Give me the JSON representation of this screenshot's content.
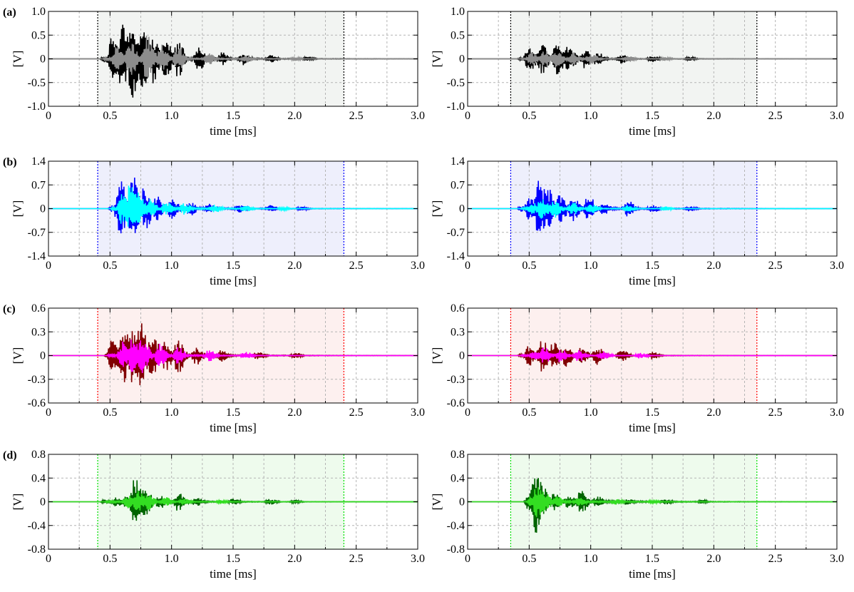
{
  "chart_data": [
    {
      "id": "a-left",
      "type": "line",
      "panel_label": "(a)",
      "xlabel": "time [ms]",
      "ylabel": "[V]",
      "xlim": [
        0,
        3.0
      ],
      "ylim": [
        -1.0,
        1.0
      ],
      "xticks": [
        "0",
        "0.5",
        "1.0",
        "1.5",
        "2.0",
        "2.5",
        "3.0"
      ],
      "yticks": [
        "1.0",
        "0.5",
        "0",
        "-0.5",
        "-1.0"
      ],
      "window": [
        0.4,
        2.4
      ],
      "window_color": "#000000",
      "shade_color": "#f2f4f2",
      "grid": true,
      "series": [
        {
          "color": "#000000",
          "onset": 0.42,
          "end": 2.8,
          "peak_time": 0.68,
          "peak": 0.88,
          "bursts": [
            [
              0.52,
              0.5
            ],
            [
              0.6,
              0.75
            ],
            [
              0.68,
              0.88
            ],
            [
              0.76,
              0.7
            ],
            [
              0.84,
              0.55
            ],
            [
              0.95,
              0.45
            ],
            [
              1.05,
              0.4
            ],
            [
              1.22,
              0.25
            ],
            [
              1.4,
              0.15
            ],
            [
              1.58,
              0.14
            ],
            [
              1.8,
              0.08
            ],
            [
              2.1,
              0.05
            ]
          ]
        },
        {
          "color": "#8c8c8c",
          "onset": 0.44,
          "end": 2.8,
          "peak_time": 0.8,
          "peak": 0.5,
          "bursts": [
            [
              0.55,
              0.3
            ],
            [
              0.66,
              0.42
            ],
            [
              0.8,
              0.5
            ],
            [
              0.92,
              0.3
            ],
            [
              1.05,
              0.25
            ],
            [
              1.3,
              0.12
            ],
            [
              1.6,
              0.08
            ],
            [
              2.0,
              0.04
            ]
          ]
        }
      ]
    },
    {
      "id": "a-right",
      "type": "line",
      "panel_label": "",
      "xlabel": "time [ms]",
      "ylabel": "[V]",
      "xlim": [
        0,
        3.0
      ],
      "ylim": [
        -1.0,
        1.0
      ],
      "xticks": [
        "0",
        "0.5",
        "1.0",
        "1.5",
        "2.0",
        "2.5",
        "3.0"
      ],
      "yticks": [
        "1.0",
        "0.5",
        "0",
        "-0.5",
        "-1.0"
      ],
      "window": [
        0.35,
        2.35
      ],
      "window_color": "#000000",
      "shade_color": "#f2f4f2",
      "grid": true,
      "series": [
        {
          "color": "#000000",
          "onset": 0.4,
          "end": 2.8,
          "peak_time": 0.72,
          "peak": 0.4,
          "bursts": [
            [
              0.5,
              0.28
            ],
            [
              0.6,
              0.32
            ],
            [
              0.72,
              0.4
            ],
            [
              0.82,
              0.3
            ],
            [
              0.95,
              0.2
            ],
            [
              1.05,
              0.15
            ],
            [
              1.25,
              0.1
            ],
            [
              1.5,
              0.07
            ],
            [
              1.8,
              0.04
            ]
          ]
        },
        {
          "color": "#8c8c8c",
          "onset": 0.42,
          "end": 2.8,
          "peak_time": 0.62,
          "peak": 0.22,
          "bursts": [
            [
              0.52,
              0.15
            ],
            [
              0.62,
              0.22
            ],
            [
              0.72,
              0.2
            ],
            [
              0.85,
              0.15
            ],
            [
              1.0,
              0.12
            ],
            [
              1.3,
              0.07
            ],
            [
              1.6,
              0.04
            ]
          ]
        }
      ]
    },
    {
      "id": "b-left",
      "type": "line",
      "panel_label": "(b)",
      "xlabel": "time [ms]",
      "ylabel": "[V]",
      "xlim": [
        0,
        3.0
      ],
      "ylim": [
        -1.4,
        1.4
      ],
      "xticks": [
        "0",
        "0.5",
        "1.0",
        "1.5",
        "2.0",
        "2.5",
        "3.0"
      ],
      "yticks": [
        "1.4",
        "0.7",
        "0",
        "-0.7",
        "-1.4"
      ],
      "window": [
        0.4,
        2.4
      ],
      "window_color": "#0000ff",
      "shade_color": "#eeeffc",
      "grid": true,
      "series": [
        {
          "color": "#0000ff",
          "onset": 0.48,
          "end": 2.8,
          "peak_time": 0.68,
          "peak": 1.02,
          "bursts": [
            [
              0.58,
              0.85
            ],
            [
              0.68,
              1.02
            ],
            [
              0.78,
              0.7
            ],
            [
              0.88,
              0.4
            ],
            [
              1.0,
              0.32
            ],
            [
              1.15,
              0.22
            ],
            [
              1.3,
              0.15
            ],
            [
              1.55,
              0.12
            ],
            [
              1.8,
              0.1
            ],
            [
              2.05,
              0.06
            ]
          ]
        },
        {
          "color": "#00ffff",
          "onset": 0.5,
          "end": 2.8,
          "peak_time": 0.66,
          "peak": 0.72,
          "bursts": [
            [
              0.6,
              0.5
            ],
            [
              0.66,
              0.72
            ],
            [
              0.72,
              0.55
            ],
            [
              0.82,
              0.3
            ],
            [
              0.95,
              0.22
            ],
            [
              1.1,
              0.18
            ],
            [
              1.35,
              0.12
            ],
            [
              1.6,
              0.09
            ],
            [
              1.9,
              0.05
            ]
          ]
        }
      ]
    },
    {
      "id": "b-right",
      "type": "line",
      "panel_label": "",
      "xlabel": "time [ms]",
      "ylabel": "[V]",
      "xlim": [
        0,
        3.0
      ],
      "ylim": [
        -1.4,
        1.4
      ],
      "xticks": [
        "0",
        "0.5",
        "1.0",
        "1.5",
        "2.0",
        "2.5",
        "3.0"
      ],
      "yticks": [
        "1.4",
        "0.7",
        "0",
        "-0.7",
        "-1.4"
      ],
      "window": [
        0.35,
        2.35
      ],
      "window_color": "#0000ff",
      "shade_color": "#eeeffc",
      "grid": true,
      "series": [
        {
          "color": "#0000ff",
          "onset": 0.4,
          "end": 2.8,
          "peak_time": 0.58,
          "peak": 0.92,
          "bursts": [
            [
              0.5,
              0.35
            ],
            [
              0.58,
              0.92
            ],
            [
              0.66,
              0.6
            ],
            [
              0.75,
              0.45
            ],
            [
              0.85,
              0.38
            ],
            [
              0.98,
              0.4
            ],
            [
              1.1,
              0.2
            ],
            [
              1.3,
              0.25
            ],
            [
              1.5,
              0.12
            ],
            [
              1.8,
              0.08
            ]
          ]
        },
        {
          "color": "#00ffff",
          "onset": 0.42,
          "end": 2.8,
          "peak_time": 0.6,
          "peak": 0.35,
          "bursts": [
            [
              0.52,
              0.2
            ],
            [
              0.6,
              0.35
            ],
            [
              0.7,
              0.28
            ],
            [
              0.85,
              0.2
            ],
            [
              1.0,
              0.15
            ],
            [
              1.3,
              0.1
            ],
            [
              1.6,
              0.07
            ]
          ]
        }
      ]
    },
    {
      "id": "c-left",
      "type": "line",
      "panel_label": "(c)",
      "xlabel": "time [ms]",
      "ylabel": "[V]",
      "xlim": [
        0,
        3.0
      ],
      "ylim": [
        -0.6,
        0.6
      ],
      "xticks": [
        "0",
        "0.5",
        "1.0",
        "1.5",
        "2.0",
        "2.5",
        "3.0"
      ],
      "yticks": [
        "0.6",
        "0.3",
        "0",
        "-0.3",
        "-0.6"
      ],
      "window": [
        0.4,
        2.4
      ],
      "window_color": "#ff0000",
      "shade_color": "#fdf0ef",
      "grid": true,
      "series": [
        {
          "color": "#800000",
          "onset": 0.45,
          "end": 2.8,
          "peak_time": 0.74,
          "peak": 0.46,
          "bursts": [
            [
              0.52,
              0.25
            ],
            [
              0.6,
              0.42
            ],
            [
              0.68,
              0.35
            ],
            [
              0.74,
              0.46
            ],
            [
              0.84,
              0.3
            ],
            [
              0.95,
              0.2
            ],
            [
              1.05,
              0.24
            ],
            [
              1.2,
              0.12
            ],
            [
              1.4,
              0.08
            ],
            [
              1.7,
              0.06
            ],
            [
              2.0,
              0.04
            ]
          ]
        },
        {
          "color": "#ff00ff",
          "onset": 0.47,
          "end": 2.8,
          "peak_time": 0.76,
          "peak": 0.25,
          "bursts": [
            [
              0.6,
              0.18
            ],
            [
              0.68,
              0.22
            ],
            [
              0.76,
              0.25
            ],
            [
              0.9,
              0.16
            ],
            [
              1.05,
              0.12
            ],
            [
              1.3,
              0.08
            ],
            [
              1.6,
              0.05
            ]
          ]
        }
      ]
    },
    {
      "id": "c-right",
      "type": "line",
      "panel_label": "",
      "xlabel": "time [ms]",
      "ylabel": "[V]",
      "xlim": [
        0,
        3.0
      ],
      "ylim": [
        -0.6,
        0.6
      ],
      "xticks": [
        "0",
        "0.5",
        "1.0",
        "1.5",
        "2.0",
        "2.5",
        "3.0"
      ],
      "yticks": [
        "0.6",
        "0.3",
        "0",
        "-0.3",
        "-0.6"
      ],
      "window": [
        0.35,
        2.35
      ],
      "window_color": "#ff0000",
      "shade_color": "#fdf0ef",
      "grid": true,
      "series": [
        {
          "color": "#800000",
          "onset": 0.4,
          "end": 2.8,
          "peak_time": 0.6,
          "peak": 0.22,
          "bursts": [
            [
              0.5,
              0.14
            ],
            [
              0.6,
              0.22
            ],
            [
              0.7,
              0.2
            ],
            [
              0.8,
              0.15
            ],
            [
              0.92,
              0.12
            ],
            [
              1.05,
              0.12
            ],
            [
              1.25,
              0.08
            ],
            [
              1.5,
              0.05
            ]
          ]
        },
        {
          "color": "#ff00ff",
          "onset": 0.42,
          "end": 2.8,
          "peak_time": 0.62,
          "peak": 0.12,
          "bursts": [
            [
              0.55,
              0.08
            ],
            [
              0.62,
              0.12
            ],
            [
              0.75,
              0.1
            ],
            [
              0.9,
              0.08
            ],
            [
              1.1,
              0.06
            ],
            [
              1.4,
              0.04
            ]
          ]
        }
      ]
    },
    {
      "id": "d-left",
      "type": "line",
      "panel_label": "(d)",
      "xlabel": "time [ms]",
      "ylabel": "[V]",
      "xlim": [
        0,
        3.0
      ],
      "ylim": [
        -0.8,
        0.8
      ],
      "xticks": [
        "0",
        "0.5",
        "1.0",
        "1.5",
        "2.0",
        "2.5",
        "3.0"
      ],
      "yticks": [
        "0.8",
        "0.4",
        "0",
        "-0.4",
        "-0.8"
      ],
      "window": [
        0.4,
        2.4
      ],
      "window_color": "#00e000",
      "shade_color": "#eefbed",
      "grid": true,
      "series": [
        {
          "color": "#006400",
          "onset": 0.42,
          "end": 2.8,
          "peak_time": 0.7,
          "peak": 0.4,
          "bursts": [
            [
              0.55,
              0.08
            ],
            [
              0.63,
              0.12
            ],
            [
              0.7,
              0.4
            ],
            [
              0.78,
              0.25
            ],
            [
              0.9,
              0.12
            ],
            [
              1.05,
              0.16
            ],
            [
              1.2,
              0.08
            ],
            [
              1.5,
              0.06
            ],
            [
              1.8,
              0.05
            ],
            [
              2.0,
              0.03
            ]
          ]
        },
        {
          "color": "#33dd22",
          "onset": 0.45,
          "end": 2.8,
          "peak_time": 0.72,
          "peak": 0.2,
          "bursts": [
            [
              0.65,
              0.12
            ],
            [
              0.72,
              0.2
            ],
            [
              0.8,
              0.15
            ],
            [
              0.95,
              0.08
            ],
            [
              1.1,
              0.06
            ],
            [
              1.4,
              0.04
            ]
          ]
        }
      ]
    },
    {
      "id": "d-right",
      "type": "line",
      "panel_label": "",
      "xlabel": "time [ms]",
      "ylabel": "[V]",
      "xlim": [
        0,
        3.0
      ],
      "ylim": [
        -0.8,
        0.8
      ],
      "xticks": [
        "0",
        "0.5",
        "1.0",
        "1.5",
        "2.0",
        "2.5",
        "3.0"
      ],
      "yticks": [
        "0.8",
        "0.4",
        "0",
        "-0.4",
        "-0.8"
      ],
      "window": [
        0.35,
        2.35
      ],
      "window_color": "#00e000",
      "shade_color": "#eefbed",
      "grid": true,
      "series": [
        {
          "color": "#006400",
          "onset": 0.45,
          "end": 2.8,
          "peak_time": 0.55,
          "peak": 0.55,
          "bursts": [
            [
              0.5,
              0.15
            ],
            [
              0.55,
              0.55
            ],
            [
              0.6,
              0.3
            ],
            [
              0.7,
              0.15
            ],
            [
              0.82,
              0.12
            ],
            [
              0.92,
              0.2
            ],
            [
              1.05,
              0.1
            ],
            [
              1.3,
              0.06
            ],
            [
              1.6,
              0.05
            ],
            [
              1.9,
              0.03
            ]
          ]
        },
        {
          "color": "#33dd22",
          "onset": 0.47,
          "end": 2.8,
          "peak_time": 0.56,
          "peak": 0.3,
          "bursts": [
            [
              0.52,
              0.1
            ],
            [
              0.56,
              0.3
            ],
            [
              0.62,
              0.18
            ],
            [
              0.72,
              0.1
            ],
            [
              0.9,
              0.08
            ],
            [
              1.2,
              0.05
            ],
            [
              1.5,
              0.03
            ]
          ]
        }
      ]
    }
  ]
}
